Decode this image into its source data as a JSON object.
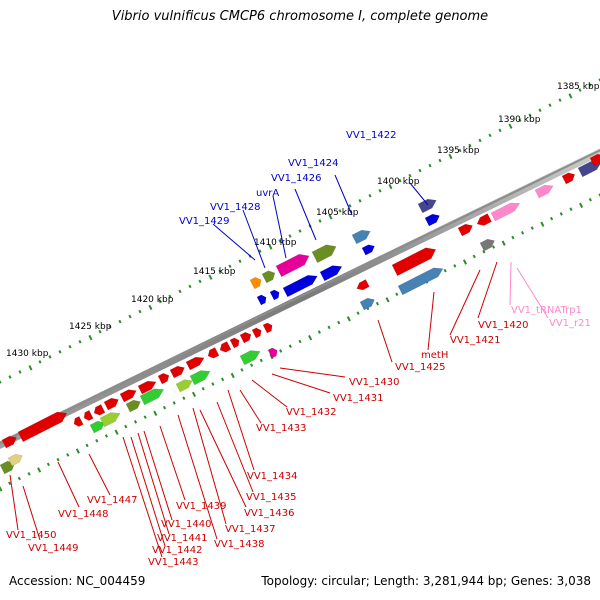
{
  "title": "Vibrio vulnificus CMCP6 chromosome I, complete genome",
  "footer": {
    "accession": "Accession: NC_004459",
    "topology": "Topology: circular; Length: 3,281,944 bp; Genes: 3,038"
  },
  "colors": {
    "backbone": "#8c8c8c",
    "scale_dots": "#2e8b2e",
    "label_blue": "#0000cc",
    "label_red": "#cc0000",
    "label_pink": "#ff88cc"
  },
  "scale_ticks": [
    {
      "text": "1385 kbp"
    },
    {
      "text": "1390 kbp"
    },
    {
      "text": "1395 kbp"
    },
    {
      "text": "1400 kbp"
    },
    {
      "text": "1405 kbp"
    },
    {
      "text": "1410 kbp"
    },
    {
      "text": "1415 kbp"
    },
    {
      "text": "1420 kbp"
    },
    {
      "text": "1425 kbp"
    },
    {
      "text": "1430 kbp"
    }
  ],
  "gene_labels": [
    {
      "text": "VV1_1422",
      "color": "blue"
    },
    {
      "text": "VV1_1424",
      "color": "blue"
    },
    {
      "text": "VV1_1426",
      "color": "blue"
    },
    {
      "text": "uvrA",
      "color": "blue"
    },
    {
      "text": "VV1_1428",
      "color": "blue"
    },
    {
      "text": "VV1_1429",
      "color": "blue"
    },
    {
      "text": "VV1_tRNATrp1",
      "color": "pink"
    },
    {
      "text": "VV1_r21",
      "color": "pink"
    },
    {
      "text": "VV1_1420",
      "color": "red"
    },
    {
      "text": "VV1_1421",
      "color": "red"
    },
    {
      "text": "metH",
      "color": "red"
    },
    {
      "text": "VV1_1425",
      "color": "red"
    },
    {
      "text": "VV1_1430",
      "color": "red"
    },
    {
      "text": "VV1_1431",
      "color": "red"
    },
    {
      "text": "VV1_1432",
      "color": "red"
    },
    {
      "text": "VV1_1433",
      "color": "red"
    },
    {
      "text": "VV1_1434",
      "color": "red"
    },
    {
      "text": "VV1_1435",
      "color": "red"
    },
    {
      "text": "VV1_1436",
      "color": "red"
    },
    {
      "text": "VV1_1437",
      "color": "red"
    },
    {
      "text": "VV1_1438",
      "color": "red"
    },
    {
      "text": "VV1_1439",
      "color": "red"
    },
    {
      "text": "VV1_1440",
      "color": "red"
    },
    {
      "text": "VV1_1441",
      "color": "red"
    },
    {
      "text": "VV1_1442",
      "color": "red"
    },
    {
      "text": "VV1_1443",
      "color": "red"
    },
    {
      "text": "VV1_1447",
      "color": "red"
    },
    {
      "text": "VV1_1448",
      "color": "red"
    },
    {
      "text": "VV1_1449",
      "color": "red"
    },
    {
      "text": "VV1_1450",
      "color": "red"
    }
  ]
}
